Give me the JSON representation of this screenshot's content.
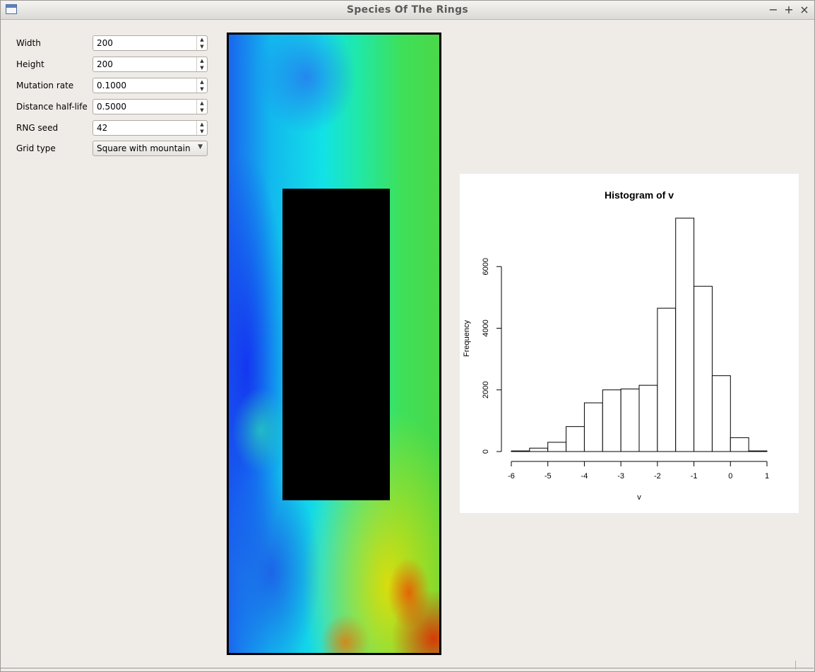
{
  "window": {
    "title": "Species Of The Rings",
    "controls": {
      "minimize": "−",
      "maximize": "+",
      "close": "×"
    }
  },
  "form": {
    "width": {
      "label": "Width",
      "value": "200"
    },
    "height": {
      "label": "Height",
      "value": "200"
    },
    "mutation_rate": {
      "label": "Mutation rate",
      "value": "0.1000"
    },
    "distance_half_life": {
      "label": "Distance half-life",
      "value": "0.5000"
    },
    "rng_seed": {
      "label": "RNG seed",
      "value": "42"
    },
    "grid_type": {
      "label": "Grid type",
      "value": "Square with mountain"
    }
  },
  "icons": {
    "spin_up": "▲",
    "spin_down": "▼",
    "combo_arrow": "▼"
  },
  "chart_data": {
    "type": "bar",
    "title": "Histogram of v",
    "xlabel": "v",
    "ylabel": "Frequency",
    "xlim": [
      -6,
      1
    ],
    "ylim": [
      0,
      8000
    ],
    "x_ticks": [
      -6,
      -5,
      -4,
      -3,
      -2,
      -1,
      0,
      1
    ],
    "y_ticks": [
      0,
      2000,
      4000,
      6000
    ],
    "bins": [
      {
        "from": -6.0,
        "to": -5.5,
        "count": 20
      },
      {
        "from": -5.5,
        "to": -5.0,
        "count": 110
      },
      {
        "from": -5.0,
        "to": -4.5,
        "count": 300
      },
      {
        "from": -4.5,
        "to": -4.0,
        "count": 810
      },
      {
        "from": -4.0,
        "to": -3.5,
        "count": 1580
      },
      {
        "from": -3.5,
        "to": -3.0,
        "count": 2000
      },
      {
        "from": -3.0,
        "to": -2.5,
        "count": 2030
      },
      {
        "from": -2.5,
        "to": -2.0,
        "count": 2150
      },
      {
        "from": -2.0,
        "to": -1.5,
        "count": 4650
      },
      {
        "from": -1.5,
        "to": -1.0,
        "count": 7570
      },
      {
        "from": -1.0,
        "to": -0.5,
        "count": 5360
      },
      {
        "from": -0.5,
        "to": 0.0,
        "count": 2460
      },
      {
        "from": 0.0,
        "to": 0.5,
        "count": 450
      },
      {
        "from": 0.5,
        "to": 1.0,
        "count": 20
      }
    ],
    "grid": false,
    "legend": "none",
    "bar_fill": "#ffffff",
    "bar_stroke": "#000000"
  }
}
